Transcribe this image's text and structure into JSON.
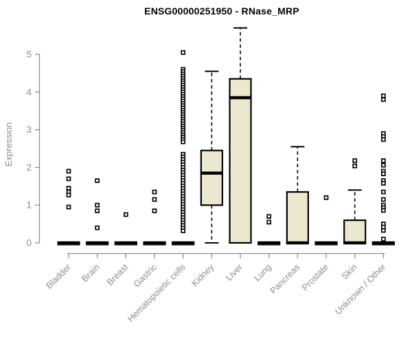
{
  "page": {
    "background": "#ffffff"
  },
  "chart_data": {
    "type": "boxplot",
    "title": "ENSG00000251950 - RNase_MRP",
    "ylabel": "Expression",
    "xlabel": "",
    "ylim": [
      0,
      5
    ],
    "yticks": [
      0,
      1,
      2,
      3,
      4,
      5
    ],
    "grid": false,
    "legend": "none",
    "colors": {
      "box_fill": "#ece8d0",
      "box_stroke": "#000000",
      "median": "#000000",
      "outlier": "#000000",
      "axis": "#8c8c8c",
      "title": "#000000"
    },
    "categories": [
      "Bladder",
      "Brain",
      "Breast",
      "Gastric",
      "Hematopoietic cells",
      "Kidney",
      "Liver",
      "Lung",
      "Pancreas",
      "Prostate",
      "Skin",
      "Unknown / Other"
    ],
    "series": [
      {
        "name": "Bladder",
        "q1": 0,
        "median": 0,
        "q3": 0,
        "whisker_low": 0,
        "whisker_high": 0,
        "outliers": [
          1.9,
          1.7,
          1.45,
          1.35,
          1.27,
          0.95
        ]
      },
      {
        "name": "Brain",
        "q1": 0,
        "median": 0,
        "q3": 0,
        "whisker_low": 0,
        "whisker_high": 0,
        "outliers": [
          1.65,
          1.0,
          0.85,
          0.4
        ]
      },
      {
        "name": "Breast",
        "q1": 0,
        "median": 0,
        "q3": 0,
        "whisker_low": 0,
        "whisker_high": 0,
        "outliers": [
          0.75
        ]
      },
      {
        "name": "Gastric",
        "q1": 0,
        "median": 0,
        "q3": 0,
        "whisker_low": 0,
        "whisker_high": 0,
        "outliers": [
          1.35,
          1.15,
          0.85
        ]
      },
      {
        "name": "Hematopoietic cells",
        "q1": 0,
        "median": 0,
        "q3": 0,
        "whisker_low": 0,
        "whisker_high": 0,
        "outliers": [
          5.05,
          4.6,
          4.54,
          4.48,
          4.42,
          4.36,
          4.3,
          4.24,
          4.18,
          4.12,
          4.06,
          4.0,
          3.94,
          3.88,
          3.82,
          3.76,
          3.7,
          3.64,
          3.58,
          3.52,
          3.46,
          3.4,
          3.34,
          3.28,
          3.22,
          3.16,
          3.1,
          3.04,
          2.98,
          2.92,
          2.86,
          2.8,
          2.74,
          2.68,
          2.35,
          2.28,
          2.21,
          2.14,
          2.07,
          2.0,
          1.93,
          1.86,
          1.79,
          1.72,
          1.65,
          1.58,
          1.51,
          1.44,
          1.37,
          1.3,
          1.23,
          1.16,
          1.09,
          1.02,
          0.95,
          0.88,
          0.81,
          0.74,
          0.67,
          0.6,
          0.53,
          0.46,
          0.39,
          0.32
        ]
      },
      {
        "name": "Kidney",
        "q1": 1.0,
        "median": 1.85,
        "q3": 2.45,
        "whisker_low": 0,
        "whisker_high": 4.55,
        "outliers": []
      },
      {
        "name": "Liver",
        "q1": 0,
        "median": 3.85,
        "q3": 4.35,
        "whisker_low": 0,
        "whisker_high": 5.7,
        "outliers": []
      },
      {
        "name": "Lung",
        "q1": 0,
        "median": 0,
        "q3": 0,
        "whisker_low": 0,
        "whisker_high": 0,
        "outliers": [
          0.7,
          0.55
        ]
      },
      {
        "name": "Pancreas",
        "q1": 0,
        "median": 0,
        "q3": 1.35,
        "whisker_low": 0,
        "whisker_high": 2.55,
        "outliers": []
      },
      {
        "name": "Prostate",
        "q1": 0,
        "median": 0,
        "q3": 0,
        "whisker_low": 0,
        "whisker_high": 0,
        "outliers": [
          1.2
        ]
      },
      {
        "name": "Skin",
        "q1": 0,
        "median": 0,
        "q3": 0.6,
        "whisker_low": 0,
        "whisker_high": 1.4,
        "outliers": [
          2.18,
          2.04
        ]
      },
      {
        "name": "Unknown / Other",
        "q1": 0,
        "median": 0,
        "q3": 0,
        "whisker_low": 0,
        "whisker_high": 0,
        "outliers": [
          3.9,
          3.8,
          2.9,
          2.82,
          2.74,
          2.18,
          2.06,
          1.9,
          1.83,
          1.65,
          1.58,
          1.35,
          1.15,
          1.0,
          0.93,
          0.86,
          0.5,
          0.42,
          0.33,
          0.1
        ]
      }
    ]
  }
}
